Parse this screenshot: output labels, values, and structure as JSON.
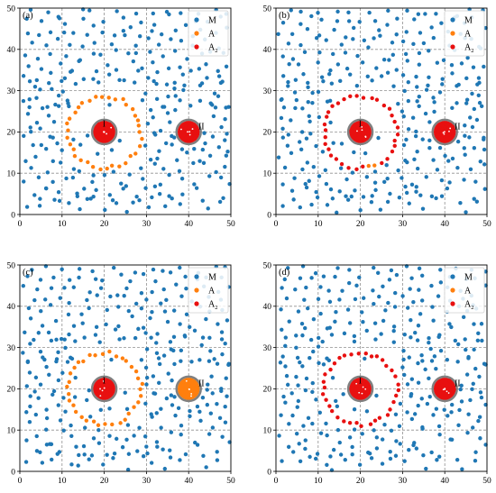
{
  "figure": {
    "background": "#ffffff"
  },
  "chart_data": [
    {
      "type": "scatter",
      "panel_label": "(a)",
      "xlim": [
        0,
        50
      ],
      "ylim": [
        0,
        50
      ],
      "xticks": [
        0,
        10,
        20,
        30,
        40,
        50
      ],
      "yticks": [
        0,
        10,
        20,
        30,
        40,
        50
      ],
      "grid": true,
      "legend": {
        "placement": "top-right",
        "entries": [
          "M",
          "A",
          "A₂"
        ]
      },
      "annotations": [
        {
          "text": "I",
          "x": 19.6,
          "y": 21.3
        },
        {
          "text": "II",
          "x": 42.3,
          "y": 20.6
        }
      ],
      "obstacles": [
        {
          "center": [
            20,
            20
          ],
          "radius": 2.7
        },
        {
          "center": [
            40,
            20
          ],
          "radius": 2.7
        }
      ],
      "colors": {
        "M": "#1f77b4",
        "A": "#ff7f0e",
        "A₂": "#e81010",
        "obstacle_edge": "#808080"
      },
      "ring_I": {
        "center": [
          20,
          20
        ],
        "radius": 8.7,
        "n": 34,
        "colors": [
          "A"
        ]
      },
      "cluster_I": {
        "center": [
          20,
          20
        ],
        "n": 24,
        "color": "A₂"
      },
      "cluster_II": {
        "center": [
          40,
          20
        ],
        "n": 20,
        "color": "A₂"
      }
    },
    {
      "type": "scatter",
      "panel_label": "(b)",
      "xlim": [
        0,
        50
      ],
      "ylim": [
        0,
        50
      ],
      "xticks": [
        0,
        10,
        20,
        30,
        40,
        50
      ],
      "yticks": [
        0,
        10,
        20,
        30,
        40,
        50
      ],
      "grid": true,
      "legend": {
        "placement": "top-right",
        "entries": [
          "M",
          "A",
          "A₂"
        ]
      },
      "annotations": [
        {
          "text": "I",
          "x": 19.6,
          "y": 21.3
        },
        {
          "text": "II",
          "x": 42.3,
          "y": 20.6
        }
      ],
      "obstacles": [
        {
          "center": [
            20,
            20
          ],
          "radius": 2.7
        },
        {
          "center": [
            40,
            20
          ],
          "radius": 2.7
        }
      ],
      "colors": {
        "M": "#1f77b4",
        "A": "#ff7f0e",
        "A₂": "#e81010",
        "obstacle_edge": "#808080"
      },
      "ring_I": {
        "center": [
          20,
          20
        ],
        "radius": 8.7,
        "n": 34,
        "colors": [
          "A₂",
          "A₂",
          "A₂",
          "A₂",
          "A₂",
          "A₂",
          "A₂",
          "A₂",
          "A₂",
          "A₂",
          "A₂",
          "A₂",
          "A₂",
          "A₂",
          "A₂",
          "A₂",
          "A₂",
          "A₂",
          "A₂",
          "A₂",
          "A₂",
          "A₂",
          "A₂",
          "A₂",
          "A₂",
          "A₂",
          "A",
          "A",
          "A₂",
          "A₂",
          "A₂",
          "A₂",
          "A₂",
          "A₂"
        ]
      },
      "cluster_I": {
        "center": [
          20,
          20
        ],
        "n": 24,
        "color": "A₂"
      },
      "cluster_II": {
        "center": [
          40,
          20
        ],
        "n": 20,
        "color": "A₂"
      }
    },
    {
      "type": "scatter",
      "panel_label": "(c)",
      "xlim": [
        0,
        50
      ],
      "ylim": [
        0,
        50
      ],
      "xticks": [
        0,
        10,
        20,
        30,
        40,
        50
      ],
      "yticks": [
        0,
        10,
        20,
        30,
        40,
        50
      ],
      "grid": true,
      "legend": {
        "placement": "top-right",
        "entries": [
          "M",
          "A",
          "A₂"
        ]
      },
      "annotations": [
        {
          "text": "I",
          "x": 19.6,
          "y": 21.3
        },
        {
          "text": "II",
          "x": 42.3,
          "y": 20.6
        }
      ],
      "obstacles": [
        {
          "center": [
            20,
            20
          ],
          "radius": 2.7
        },
        {
          "center": [
            40,
            20
          ],
          "radius": 2.7
        }
      ],
      "colors": {
        "M": "#1f77b4",
        "A": "#ff7f0e",
        "A₂": "#e81010",
        "obstacle_edge": "#808080"
      },
      "ring_I": {
        "center": [
          20,
          20
        ],
        "radius": 8.7,
        "n": 34,
        "colors": [
          "A"
        ]
      },
      "cluster_I": {
        "center": [
          20,
          20
        ],
        "n": 24,
        "color": "A₂"
      },
      "cluster_II": {
        "center": [
          40,
          20
        ],
        "n": 22,
        "color": "A"
      }
    },
    {
      "type": "scatter",
      "panel_label": "(d)",
      "xlim": [
        0,
        50
      ],
      "ylim": [
        0,
        50
      ],
      "xticks": [
        0,
        10,
        20,
        30,
        40,
        50
      ],
      "yticks": [
        0,
        10,
        20,
        30,
        40,
        50
      ],
      "grid": true,
      "legend": {
        "placement": "top-right",
        "entries": [
          "M",
          "A",
          "A₂"
        ]
      },
      "annotations": [
        {
          "text": "I",
          "x": 19.6,
          "y": 21.3
        },
        {
          "text": "II",
          "x": 42.3,
          "y": 20.6
        }
      ],
      "obstacles": [
        {
          "center": [
            20,
            20
          ],
          "radius": 2.7
        },
        {
          "center": [
            40,
            20
          ],
          "radius": 2.7
        }
      ],
      "colors": {
        "M": "#1f77b4",
        "A": "#ff7f0e",
        "A₂": "#e81010",
        "obstacle_edge": "#808080"
      },
      "ring_I": {
        "center": [
          20,
          20
        ],
        "radius": 8.7,
        "n": 34,
        "colors": [
          "A₂"
        ]
      },
      "cluster_I": {
        "center": [
          20,
          20
        ],
        "n": 24,
        "color": "A₂"
      },
      "cluster_II": {
        "center": [
          40,
          20
        ],
        "n": 20,
        "color": "A₂"
      }
    }
  ],
  "background_scatter": {
    "series": "M",
    "x": [
      2.1,
      5.3,
      8.2,
      11.5,
      14.0,
      16.8,
      19.4,
      22.2,
      25.3,
      28.6,
      31.2,
      34.8,
      37.5,
      44.6,
      47.3,
      3.6,
      6.9,
      9.8,
      13.2,
      15.9,
      18.1,
      21.3,
      24.1,
      27.4,
      30.1,
      33.6,
      36.3,
      1.4,
      4.5,
      7.7,
      10.9,
      12.6,
      17.3,
      20.8,
      23.5,
      26.7,
      29.2,
      32.5,
      35.4,
      38.7,
      41.2,
      44.8,
      47.9,
      2.8,
      6.1,
      9.1,
      12.1,
      14.7,
      17.9,
      22.9,
      25.8,
      28.9,
      31.8,
      34.2,
      37.9,
      40.5,
      43.1,
      45.9,
      48.6,
      1.1,
      3.9,
      7.2,
      10.3,
      13.8,
      16.4,
      19.7,
      24.6,
      27.9,
      30.6,
      33.2,
      36.8,
      39.5,
      42.3,
      45.2,
      48.1,
      2.4,
      5.8,
      8.9,
      11.8,
      15.1,
      18.6,
      21.7,
      26.2,
      29.8,
      32.9,
      35.7,
      38.3,
      41.8,
      44.1,
      46.8,
      49.2,
      1.7,
      4.9,
      8.1,
      10.6,
      13.4,
      31.5,
      34.1,
      37.2,
      43.5,
      46.2,
      48.9,
      2.3,
      5.5,
      8.4,
      11.2,
      30.8,
      33.4,
      36.1,
      44.2,
      47.1,
      1.9,
      4.2,
      7.5,
      10.8,
      12.9,
      29.6,
      32.3,
      35.5,
      45.4,
      48.3,
      2.6,
      6.3,
      9.4,
      11.6,
      30.4,
      33.9,
      37.1,
      43.3,
      46.6,
      49.1,
      1.5,
      4.7,
      8.6,
      11.9,
      31.9,
      34.6,
      36.9,
      44.9,
      47.6,
      2.9,
      5.1,
      7.9,
      10.4,
      29.9,
      32.8,
      35.9,
      38.4,
      42.8,
      45.7,
      48.4,
      1.3,
      4.4,
      7.1,
      10.2,
      12.3,
      15.6,
      18.2,
      21.9,
      24.8,
      27.3,
      30.3,
      33.1,
      36.6,
      39.3,
      42.1,
      45.1,
      47.8,
      2.7,
      5.9,
      9.2,
      12.7,
      14.4,
      17.5,
      20.5,
      23.2,
      26.1,
      28.8,
      31.6,
      34.5,
      37.7,
      40.9,
      43.7,
      46.3,
      49.4,
      1.8,
      4.8,
      7.6,
      11.1,
      13.9,
      16.9,
      19.9,
      22.6,
      25.5,
      28.2,
      31.1,
      33.8,
      36.4,
      39.8,
      42.6,
      45.6,
      48.2,
      3.1,
      6.4,
      9.6,
      12.4,
      15.3,
      18.4,
      21.1,
      24.3,
      27.1,
      29.9,
      32.7,
      35.1,
      38.1,
      41.4,
      44.4,
      47.4,
      1.2,
      4.1,
      7.3,
      10.1,
      13.1,
      16.2,
      19.1,
      22.4,
      25.1,
      28.4,
      31.3,
      34.3,
      37.3,
      40.2,
      43.4,
      46.5,
      49.5,
      2.2,
      5.4,
      8.7,
      11.4,
      14.5,
      17.6,
      20.3,
      23.8,
      26.5,
      29.4,
      32.1,
      35.3,
      38.9,
      41.6,
      44.7,
      47.2,
      3.3,
      6.6,
      9.9,
      14.2,
      17.1,
      22.7,
      26.9,
      30.9,
      34.4,
      38.2,
      42.4,
      46.1,
      49.3,
      2.5,
      6.8,
      10.5,
      13.6,
      18.8,
      23.3,
      27.6,
      31.4,
      35.6,
      39.1,
      43.2,
      47.7,
      1.6,
      5.2,
      8.3,
      12.2,
      16.1,
      21.5,
      25.9,
      29.5,
      33.5,
      37.6,
      41.1,
      45.3,
      48.8,
      3.4,
      7.4,
      11.3,
      15.8,
      24.2,
      28.3,
      32.6,
      36.2,
      40.7,
      44.3,
      48.5,
      4.3,
      9.5,
      13.3,
      17.8,
      22.1,
      26.4,
      30.7,
      34.9,
      39.2,
      43.6,
      47.5,
      6.2,
      15.4,
      25.2,
      33.3,
      41.5,
      49.6
    ],
    "y": [
      2.4,
      1.8,
      3.1,
      2.2,
      0.9,
      3.4,
      1.6,
      2.8,
      1.2,
      3.6,
      2.1,
      1.4,
      3.3,
      1.1,
      2.7,
      5.2,
      6.1,
      4.8,
      5.7,
      4.2,
      6.4,
      4.6,
      5.9,
      4.4,
      6.6,
      5.1,
      4.3,
      7.9,
      8.6,
      7.4,
      9.1,
      8.2,
      7.8,
      8.9,
      7.6,
      9.4,
      8.1,
      7.3,
      9.6,
      8.4,
      7.1,
      9.2,
      8.7,
      11.4,
      10.8,
      12.1,
      11.2,
      10.5,
      9.8,
      10.2,
      11.7,
      10.9,
      12.4,
      11.1,
      10.6,
      12.7,
      11.9,
      10.4,
      12.2,
      13.6,
      14.2,
      13.1,
      14.8,
      13.4,
      12.6,
      11.3,
      12.9,
      14.5,
      13.8,
      14.1,
      13.2,
      14.6,
      13.7,
      14.4,
      13.5,
      16.2,
      15.4,
      16.8,
      15.8,
      16.5,
      15.1,
      15.2,
      15.7,
      16.1,
      15.3,
      16.6,
      15.9,
      16.4,
      15.6,
      16.9,
      15.5,
      18.4,
      17.6,
      19.1,
      18.2,
      17.4,
      18.7,
      17.9,
      18.1,
      17.5,
      19.3,
      18.6,
      21.2,
      20.6,
      21.8,
      20.3,
      21.4,
      20.7,
      21.9,
      21.1,
      20.5,
      23.6,
      22.8,
      23.2,
      24.1,
      22.5,
      23.4,
      22.9,
      24.3,
      23.1,
      22.7,
      26.1,
      25.4,
      26.7,
      25.8,
      25.2,
      26.4,
      25.6,
      26.9,
      25.3,
      26.2,
      28.4,
      27.6,
      28.9,
      27.3,
      28.1,
      27.8,
      28.6,
      27.4,
      28.8,
      30.6,
      29.8,
      31.2,
      30.3,
      29.5,
      31.4,
      30.1,
      29.7,
      30.9,
      29.4,
      31.1,
      33.8,
      33.1,
      34.4,
      32.6,
      33.9,
      32.8,
      33.5,
      34.2,
      32.9,
      34.6,
      33.3,
      34.1,
      32.7,
      33.6,
      34.8,
      32.4,
      33.7,
      36.4,
      35.7,
      36.9,
      35.2,
      36.6,
      35.4,
      36.2,
      35.8,
      36.8,
      35.3,
      36.5,
      35.9,
      36.1,
      35.6,
      36.7,
      35.1,
      36.3,
      39.1,
      38.4,
      39.6,
      38.8,
      38.2,
      39.4,
      38.6,
      39.8,
      38.3,
      39.2,
      38.9,
      38.5,
      39.7,
      38.1,
      39.3,
      38.7,
      39.5,
      41.8,
      41.2,
      42.4,
      41.5,
      40.9,
      42.1,
      41.6,
      42.7,
      41.1,
      42.3,
      41.4,
      41.9,
      42.6,
      41.3,
      42.2,
      40.8,
      44.3,
      43.6,
      44.8,
      43.9,
      44.1,
      43.4,
      44.6,
      43.2,
      44.9,
      43.7,
      44.2,
      43.5,
      44.7,
      43.8,
      44.4,
      43.3,
      44.5,
      46.9,
      46.2,
      47.4,
      46.5,
      47.1,
      46.3,
      46.8,
      47.6,
      46.1,
      47.3,
      46.6,
      47.8,
      46.4,
      47.2,
      46.7,
      47.5,
      48.9,
      49.4,
      48.6,
      49.2,
      48.8,
      49.5,
      48.7,
      49.1,
      48.5,
      49.3,
      48.4,
      49.6,
      48.9,
      31.9,
      32.2,
      31.7,
      32.3,
      31.6,
      32.1,
      31.8,
      32.4,
      31.5,
      31.9,
      32.2,
      31.6,
      27.1,
      26.5,
      27.3,
      26.8,
      26.6,
      27.2,
      26.9,
      27.4,
      26.7,
      27.1,
      26.4,
      27.3,
      26.6,
      19.7,
      18.9,
      19.5,
      19.2,
      18.3,
      19.8,
      19.4,
      18.5,
      19.6,
      19.1,
      18.8,
      4.1,
      3.8,
      4.4,
      3.6,
      4.2,
      3.7,
      4.5,
      3.9,
      4.3,
      3.5,
      4.0,
      6.9,
      6.3,
      7.1,
      6.6,
      7.2,
      6.8
    ]
  }
}
